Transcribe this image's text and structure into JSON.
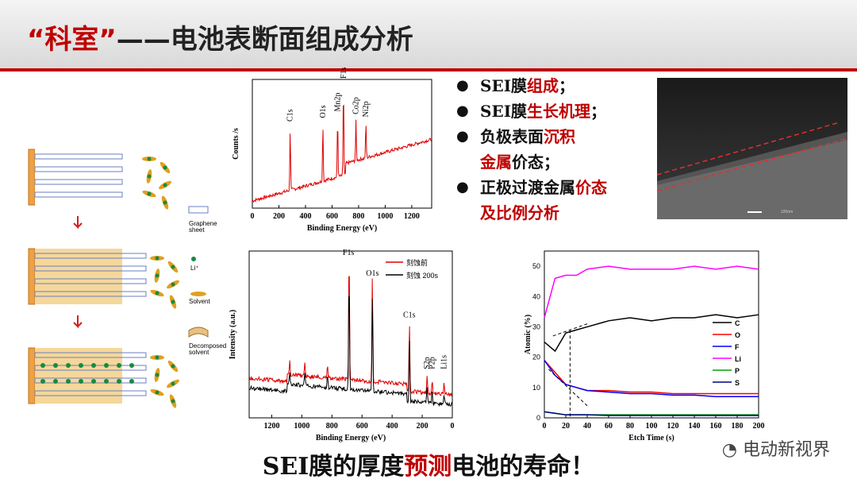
{
  "title": {
    "quote_open": "“",
    "highlight": "科室",
    "quote_close": "”",
    "rest": "——电池表断面组成分析"
  },
  "bullets": [
    {
      "parts": [
        {
          "t": "SEI膜",
          "red": false
        },
        {
          "t": "组成",
          "red": true
        },
        {
          "t": "；",
          "red": false
        }
      ]
    },
    {
      "parts": [
        {
          "t": "SEI膜",
          "red": false
        },
        {
          "t": "生长机理",
          "red": true
        },
        {
          "t": "；",
          "red": false
        }
      ]
    },
    {
      "parts": [
        {
          "t": "负极表面",
          "red": false
        },
        {
          "t": "沉积",
          "red": true
        }
      ]
    },
    {
      "parts": [
        {
          "t": "金属",
          "red": true
        },
        {
          "t": "价态；",
          "red": false
        }
      ]
    },
    {
      "parts": [
        {
          "t": "正极过渡金属",
          "red": false
        },
        {
          "t": "价态",
          "red": true
        }
      ]
    },
    {
      "parts": [
        {
          "t": "及比例分析",
          "red": true
        }
      ]
    }
  ],
  "footer": {
    "a": "SEI膜的厚度",
    "b": "预测",
    "c": "电池的寿命！"
  },
  "watermark": "电动新视界",
  "legend_schematic": {
    "graphene": "Graphene\nsheet",
    "li": "Li⁺",
    "solvent": "Solvent",
    "decomposed": "Decomposed\nsolvent"
  },
  "sem_scale": "100nm",
  "colors": {
    "accent": "#c00000"
  },
  "chart_data": [
    {
      "type": "line",
      "title": "",
      "ylabel": "Counts /s",
      "xlabel": "Binding Energy (eV)",
      "x_ticks": [
        0,
        200,
        400,
        600,
        800,
        1000,
        1200
      ],
      "xlim": [
        0,
        1350
      ],
      "peaks": [
        {
          "label": "C1s",
          "x": 285
        },
        {
          "label": "O1s",
          "x": 531
        },
        {
          "label": "Mn2p",
          "x": 642
        },
        {
          "label": "F1s",
          "x": 686
        },
        {
          "label": "Co2p",
          "x": 780
        },
        {
          "label": "Ni2p",
          "x": 855
        }
      ],
      "series": [
        {
          "name": "",
          "color": "#e00000"
        }
      ]
    },
    {
      "type": "line",
      "ylabel": "Intensity (a.u.)",
      "xlabel": "Binding Energy (eV)",
      "x_ticks": [
        1200,
        1000,
        800,
        600,
        400,
        200,
        0
      ],
      "xlim": [
        1350,
        0
      ],
      "peaks": [
        {
          "label": "F1s",
          "x": 686
        },
        {
          "label": "O1s",
          "x": 531
        },
        {
          "label": "C1s",
          "x": 285
        },
        {
          "label": "S2p",
          "x": 168
        },
        {
          "label": "P2p",
          "x": 134
        },
        {
          "label": "Li1s",
          "x": 55
        }
      ],
      "series": [
        {
          "name": "刻蚀前",
          "color": "#e00000"
        },
        {
          "name": "刻蚀 200s",
          "color": "#000000"
        }
      ]
    },
    {
      "type": "line",
      "ylabel": "Atomic (%)",
      "xlabel": "Etch Time (s)",
      "x_ticks": [
        0,
        20,
        40,
        60,
        80,
        100,
        120,
        140,
        160,
        180,
        200
      ],
      "y_ticks": [
        0,
        10,
        20,
        30,
        40,
        50
      ],
      "xlim": [
        0,
        200
      ],
      "ylim": [
        0,
        55
      ],
      "x": [
        0,
        10,
        20,
        30,
        40,
        60,
        80,
        100,
        120,
        140,
        160,
        180,
        200
      ],
      "series": [
        {
          "name": "C",
          "color": "#000000",
          "values": [
            25,
            22,
            28,
            29,
            30,
            32,
            33,
            32,
            33,
            33,
            34,
            33,
            34
          ]
        },
        {
          "name": "O",
          "color": "#ff0000",
          "values": [
            19,
            15,
            11,
            10,
            9,
            9,
            8.5,
            8.5,
            8,
            8,
            8,
            8,
            8
          ]
        },
        {
          "name": "F",
          "color": "#0000ff",
          "values": [
            19,
            14,
            11,
            10,
            9,
            8.5,
            8,
            8,
            7.5,
            7.5,
            7,
            7,
            7
          ]
        },
        {
          "name": "Li",
          "color": "#ff00ff",
          "values": [
            33,
            46,
            47,
            47,
            49,
            50,
            49,
            49,
            49,
            50,
            49,
            50,
            49
          ]
        },
        {
          "name": "P",
          "color": "#00a000",
          "values": [
            2,
            1.5,
            1,
            1,
            1,
            1,
            1,
            1,
            1,
            1,
            1,
            1,
            1
          ]
        },
        {
          "name": "S",
          "color": "#000080",
          "values": [
            2,
            1.5,
            1,
            1,
            1,
            0.8,
            0.8,
            0.8,
            0.8,
            0.8,
            0.8,
            0.8,
            0.8
          ]
        }
      ]
    }
  ]
}
